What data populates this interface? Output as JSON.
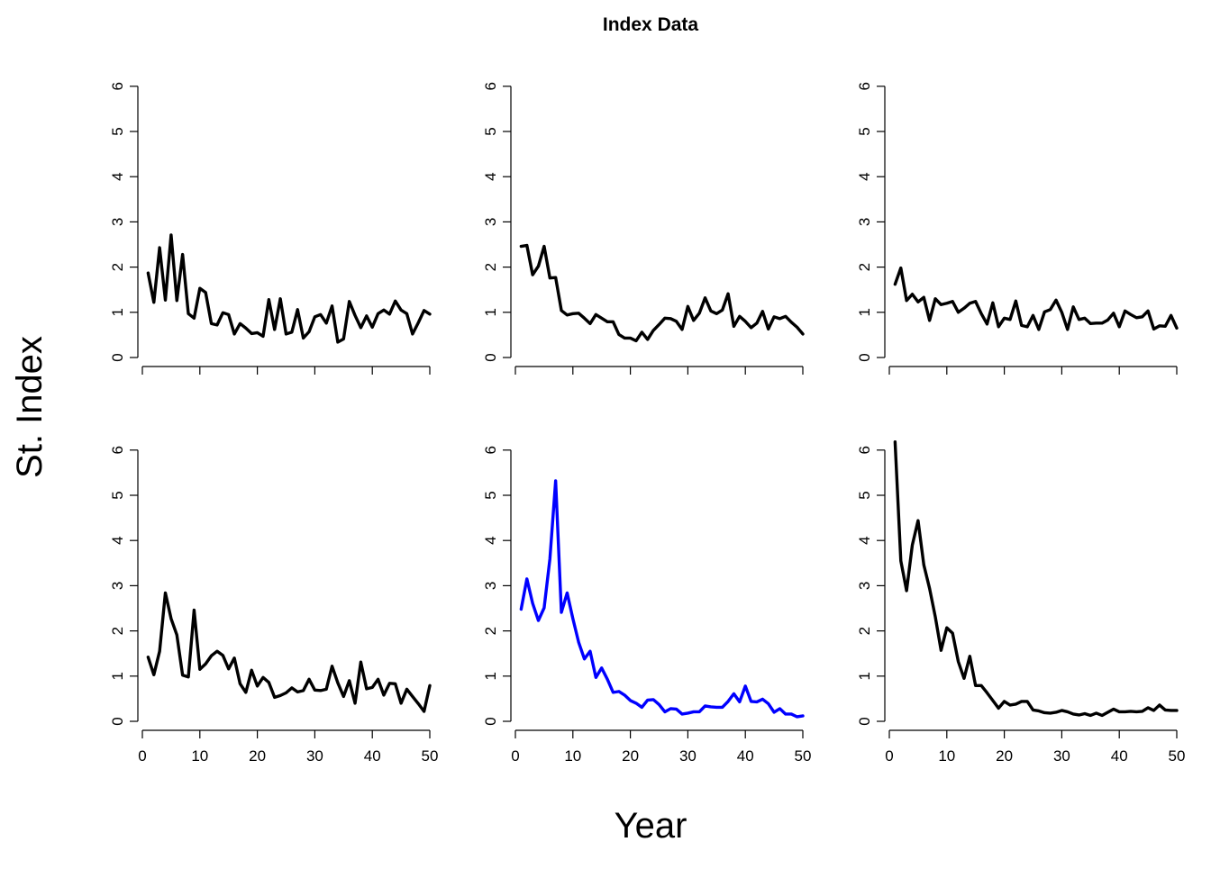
{
  "chart_data": {
    "type": "line",
    "title": "Index Data",
    "xlabel": "Year",
    "ylabel": "St. Index",
    "xlim": [
      0,
      50
    ],
    "ylim": [
      0,
      6
    ],
    "x_ticks": [
      "0",
      "10",
      "20",
      "30",
      "40",
      "50"
    ],
    "y_ticks": [
      "0",
      "1",
      "2",
      "3",
      "4",
      "5",
      "6"
    ],
    "grid": false,
    "layout": "2 rows x 3 columns",
    "panels": [
      {
        "color": "#000000",
        "values": [
          1.87,
          1.22,
          2.43,
          1.27,
          2.71,
          1.26,
          2.28,
          0.97,
          0.87,
          1.53,
          1.44,
          0.75,
          0.72,
          0.99,
          0.95,
          0.52,
          0.75,
          0.65,
          0.53,
          0.55,
          0.47,
          1.28,
          0.62,
          1.3,
          0.52,
          0.56,
          1.06,
          0.43,
          0.57,
          0.9,
          0.95,
          0.76,
          1.14,
          0.34,
          0.41,
          1.24,
          0.93,
          0.66,
          0.92,
          0.67,
          0.97,
          1.05,
          0.96,
          1.25,
          1.05,
          0.97,
          0.52,
          0.77,
          1.04,
          0.96
        ]
      },
      {
        "color": "#000000",
        "values": [
          2.46,
          2.48,
          1.83,
          2.02,
          2.46,
          1.76,
          1.77,
          1.04,
          0.94,
          0.97,
          0.98,
          0.87,
          0.75,
          0.95,
          0.87,
          0.79,
          0.79,
          0.51,
          0.43,
          0.43,
          0.37,
          0.56,
          0.4,
          0.6,
          0.73,
          0.87,
          0.86,
          0.8,
          0.62,
          1.13,
          0.82,
          0.98,
          1.32,
          1.03,
          0.97,
          1.05,
          1.41,
          0.69,
          0.91,
          0.8,
          0.66,
          0.76,
          1.02,
          0.63,
          0.9,
          0.86,
          0.91,
          0.78,
          0.67,
          0.52
        ]
      },
      {
        "color": "#000000",
        "values": [
          1.62,
          1.98,
          1.26,
          1.4,
          1.23,
          1.33,
          0.82,
          1.3,
          1.17,
          1.2,
          1.24,
          1.0,
          1.09,
          1.2,
          1.24,
          0.97,
          0.74,
          1.21,
          0.68,
          0.87,
          0.84,
          1.25,
          0.71,
          0.68,
          0.93,
          0.62,
          1.01,
          1.06,
          1.27,
          1.0,
          0.62,
          1.12,
          0.84,
          0.87,
          0.75,
          0.76,
          0.76,
          0.83,
          0.98,
          0.68,
          1.03,
          0.95,
          0.88,
          0.9,
          1.03,
          0.63,
          0.7,
          0.69,
          0.93,
          0.65
        ]
      },
      {
        "color": "#000000",
        "values": [
          1.42,
          1.03,
          1.55,
          2.84,
          2.27,
          1.91,
          1.02,
          0.98,
          2.46,
          1.15,
          1.27,
          1.45,
          1.55,
          1.46,
          1.16,
          1.4,
          0.83,
          0.64,
          1.13,
          0.78,
          0.97,
          0.86,
          0.53,
          0.57,
          0.63,
          0.74,
          0.65,
          0.68,
          0.93,
          0.69,
          0.68,
          0.71,
          1.22,
          0.85,
          0.55,
          0.9,
          0.4,
          1.31,
          0.72,
          0.75,
          0.93,
          0.58,
          0.84,
          0.83,
          0.4,
          0.71,
          0.55,
          0.39,
          0.22,
          0.79
        ]
      },
      {
        "color": "#0000FF",
        "values": [
          2.48,
          3.15,
          2.61,
          2.23,
          2.51,
          3.59,
          5.32,
          2.41,
          2.84,
          2.27,
          1.75,
          1.38,
          1.55,
          0.97,
          1.18,
          0.93,
          0.64,
          0.66,
          0.58,
          0.46,
          0.4,
          0.31,
          0.47,
          0.48,
          0.37,
          0.21,
          0.28,
          0.27,
          0.16,
          0.18,
          0.21,
          0.21,
          0.34,
          0.32,
          0.31,
          0.31,
          0.44,
          0.61,
          0.43,
          0.78,
          0.44,
          0.43,
          0.49,
          0.39,
          0.2,
          0.28,
          0.16,
          0.16,
          0.1,
          0.12
        ]
      },
      {
        "color": "#000000",
        "values": [
          6.18,
          3.55,
          2.89,
          3.9,
          4.44,
          3.46,
          2.94,
          2.31,
          1.57,
          2.07,
          1.95,
          1.32,
          0.95,
          1.44,
          0.79,
          0.79,
          0.63,
          0.46,
          0.29,
          0.44,
          0.36,
          0.38,
          0.44,
          0.44,
          0.25,
          0.23,
          0.19,
          0.18,
          0.2,
          0.24,
          0.21,
          0.16,
          0.14,
          0.17,
          0.13,
          0.18,
          0.13,
          0.2,
          0.27,
          0.21,
          0.21,
          0.22,
          0.21,
          0.22,
          0.3,
          0.24,
          0.36,
          0.25,
          0.24,
          0.24
        ]
      }
    ]
  }
}
